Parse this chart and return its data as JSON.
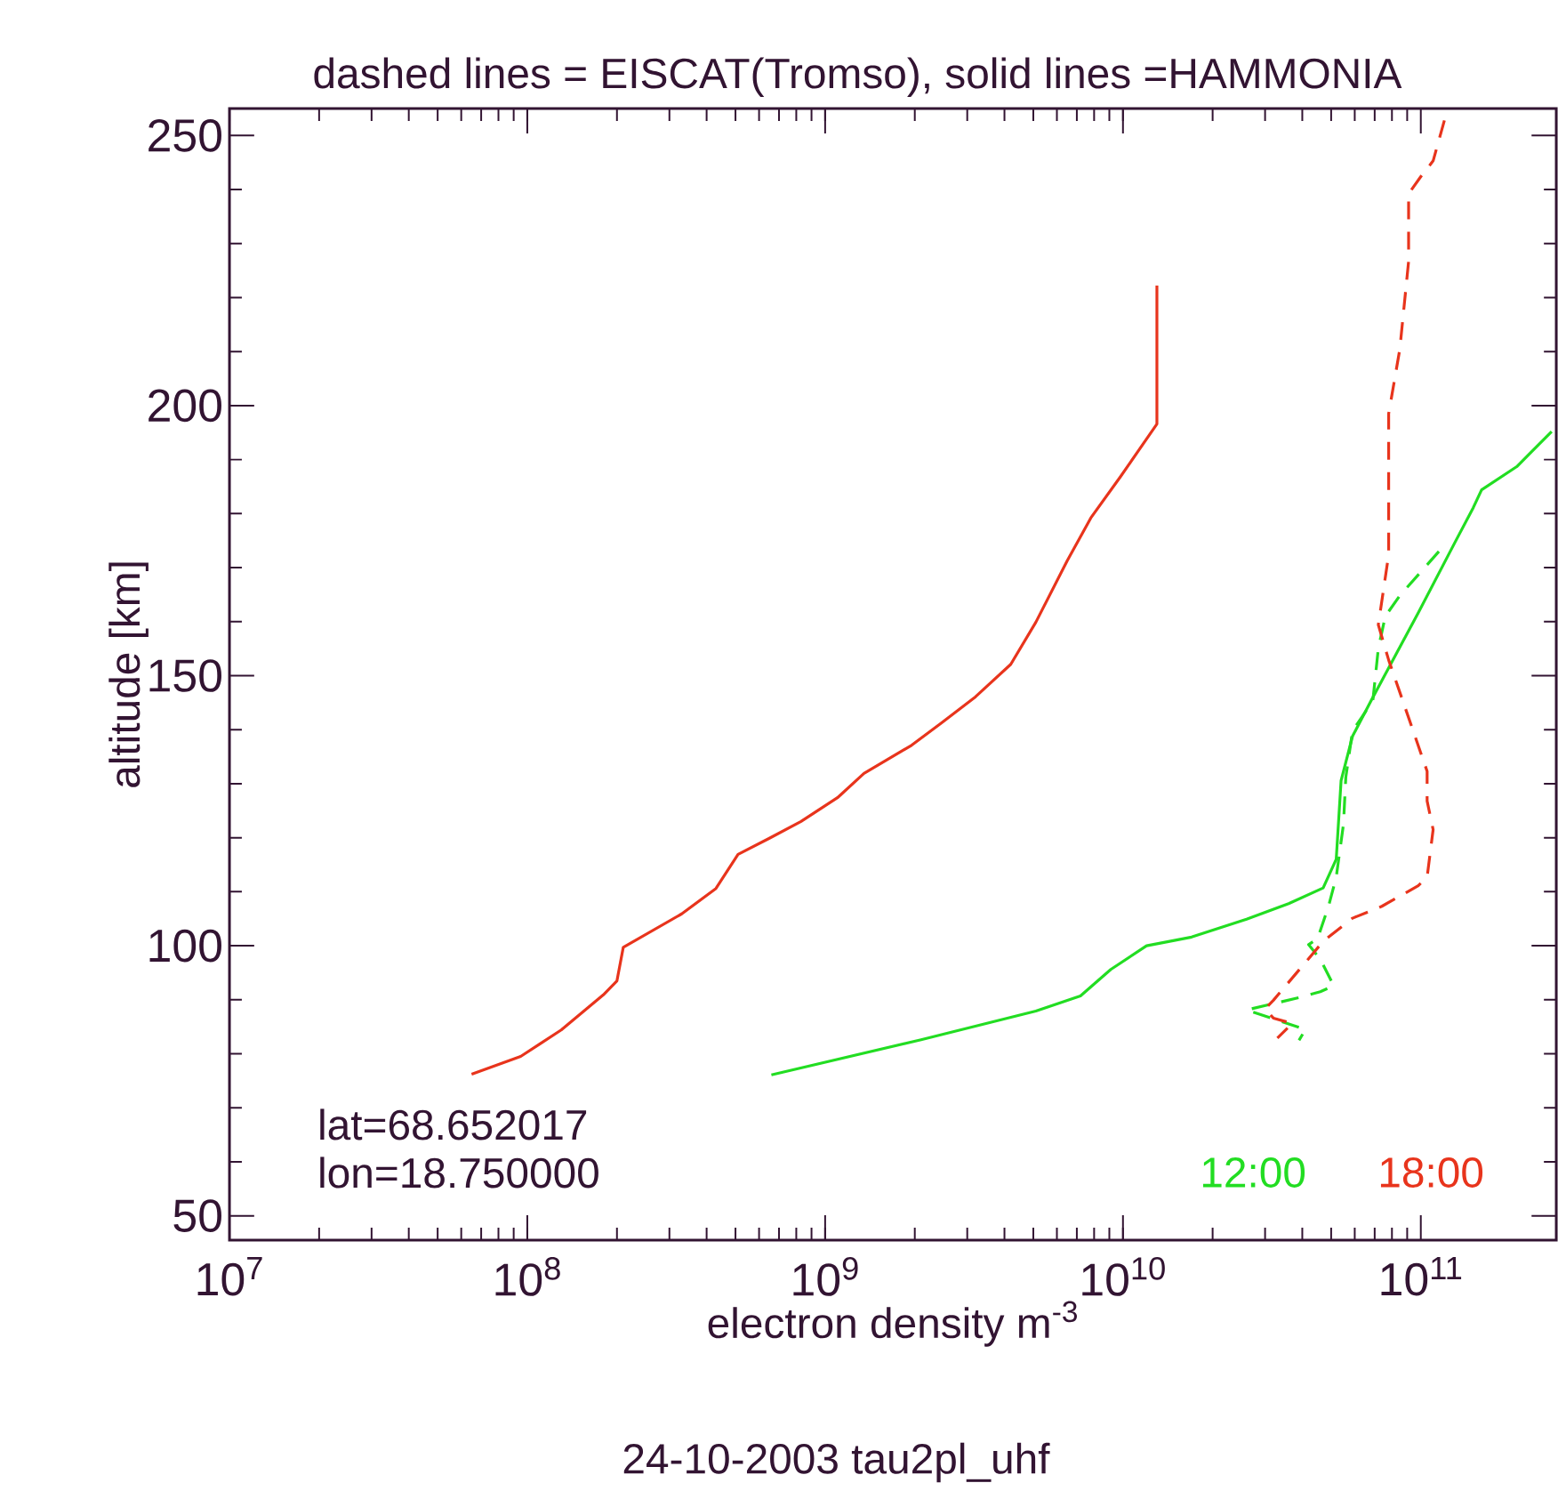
{
  "chart_data": {
    "type": "line",
    "title": "dashed lines = EISCAT(Tromso), solid lines =HAMMONIA",
    "xlabel": "electron density m$^{-3}$",
    "ylabel": "altitude [km]",
    "log": "x",
    "legend": "bottom right",
    "grid": false,
    "marker": "none",
    "xlim": [
      10000000.0,
      285000000000.0
    ],
    "ylim": [
      45.5,
      255
    ],
    "xticks": [
      {
        "value": 10000000.0,
        "label": "10$^{7}$"
      },
      {
        "value": 100000000.0,
        "label": "10$^{8}$"
      },
      {
        "value": 1000000000.0,
        "label": "10$^{9}$"
      },
      {
        "value": 10000000000.0,
        "label": "10$^{10}$"
      },
      {
        "value": 100000000000.0,
        "label": "10$^{11}$"
      }
    ],
    "yticks": [
      50,
      100,
      150,
      200,
      250
    ],
    "annotations": [
      "lat=68.652017",
      "lon=18.750000",
      "24-10-2003  tau2pl_uhf"
    ],
    "series": [
      {
        "name": "12:00",
        "color": "#22dd22",
        "line_style": "solid",
        "x": [
          660000000.0,
          2100000000.0,
          5100000000.0,
          7200000000.0,
          9100000000.0,
          12000000000.0,
          17000000000.0,
          26000000000.0,
          36000000000.0,
          47000000000.0,
          52000000000.0,
          54000000000.0,
          59000000000.0,
          68000000000.0,
          83000000000.0,
          98000000000.0,
          130000000000.0,
          150000000000.0,
          160000000000.0,
          210000000000.0,
          275000000000.0
        ],
        "values": [
          76.1,
          82.6,
          87.9,
          90.7,
          95.6,
          100,
          101.6,
          104.9,
          107.8,
          110.7,
          116,
          130.6,
          138.8,
          145.3,
          154.2,
          161.6,
          174.6,
          181.1,
          184.4,
          188.7,
          195.2
        ]
      },
      {
        "name": "18:00",
        "color": "#e8341c",
        "line_style": "solid",
        "x": [
          65000000.0,
          95000000.0,
          110000000.0,
          130000000.0,
          180000000.0,
          200000000.0,
          210000000.0,
          330000000.0,
          430000000.0,
          510000000.0,
          650000000.0,
          830000000.0,
          1100000000.0,
          1350000000.0,
          1950000000.0,
          2450000000.0,
          3200000000.0,
          4200000000.0,
          5100000000.0,
          6500000000.0,
          7800000000.0,
          9800000000.0,
          13000000000.0,
          13000000000.0
        ],
        "values": [
          76.2,
          79.5,
          81.8,
          84.4,
          90.9,
          93.5,
          99.7,
          105.9,
          110.6,
          116.9,
          119.9,
          123,
          127.4,
          131.9,
          137.1,
          141.2,
          146.1,
          152.1,
          159.9,
          171.3,
          179.2,
          186.8,
          196.6,
          222.2
        ]
      },
      {
        "color": "#22dd22",
        "line_style": "dashed",
        "x": [
          115000000000.0,
          85000000000.0,
          76000000000.0,
          72000000000.0,
          69000000000.0,
          59000000000.0,
          56000000000.0,
          55000000000.0,
          52000000000.0,
          49000000000.0,
          45000000000.0,
          42000000000.0,
          46000000000.0,
          51000000000.0,
          46000000000.0,
          39000000000.0,
          26000000000.0,
          41000000000.0,
          39000000000.0
        ],
        "values": [
          173,
          164.8,
          161,
          155,
          145.3,
          139.8,
          131.2,
          122.5,
          112.7,
          107.3,
          101.3,
          100.2,
          97.5,
          92.6,
          91.5,
          90.4,
          88.1,
          84.5,
          82.5
        ]
      },
      {
        "color": "#e8341c",
        "line_style": "dashed",
        "x": [
          120000000000.0,
          110000000000.0,
          100000000000.0,
          91000000000.0,
          91000000000.0,
          85000000000.0,
          78000000000.0,
          78000000000.0,
          72000000000.0,
          78000000000.0,
          105000000000.0,
          105000000000.0,
          110000000000.0,
          105000000000.0,
          98000000000.0,
          74000000000.0,
          59000000000.0,
          47000000000.0,
          39000000000.0,
          32000000000.0,
          30000000000.0,
          32000000000.0,
          37000000000.0,
          33000000000.0
        ],
        "values": [
          252.8,
          245.3,
          242.4,
          239.2,
          226.7,
          210.4,
          198.5,
          172.4,
          159.4,
          152.9,
          132.3,
          126.8,
          121.5,
          112.7,
          111.1,
          107.3,
          105.1,
          100.8,
          95.5,
          89.9,
          88.3,
          86.6,
          85.6,
          82.9
        ]
      }
    ]
  }
}
